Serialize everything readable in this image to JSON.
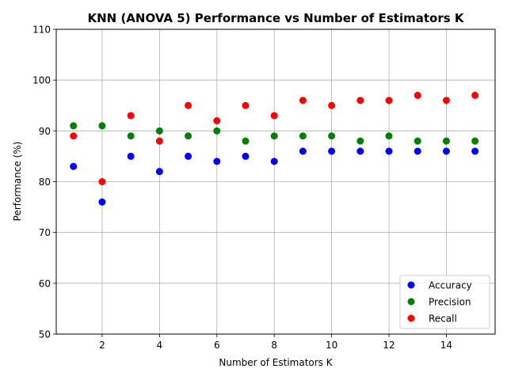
{
  "chart_data": {
    "type": "scatter",
    "title": "KNN (ANOVA 5) Performance vs Number of Estimators K",
    "xlabel": "Number of Estimators K",
    "ylabel": "Performance (%)",
    "xlim": [
      0.4,
      15.7
    ],
    "ylim": [
      50,
      110
    ],
    "xticks": [
      2,
      4,
      6,
      8,
      10,
      12,
      14
    ],
    "yticks": [
      50,
      60,
      70,
      80,
      90,
      100,
      110
    ],
    "grid": true,
    "legend_position": "lower-right",
    "x": [
      1,
      2,
      3,
      4,
      5,
      6,
      7,
      8,
      9,
      10,
      11,
      12,
      13,
      14,
      15
    ],
    "series": [
      {
        "name": "Accuracy",
        "color": "#0000ff",
        "values": [
          83,
          76,
          85,
          82,
          85,
          84,
          85,
          84,
          86,
          86,
          86,
          86,
          86,
          86,
          86
        ]
      },
      {
        "name": "Precision",
        "color": "#008000",
        "values": [
          91,
          91,
          89,
          90,
          89,
          90,
          88,
          89,
          89,
          89,
          88,
          89,
          88,
          88,
          88
        ]
      },
      {
        "name": "Recall",
        "color": "#ff0000",
        "values": [
          89,
          80,
          93,
          88,
          95,
          92,
          95,
          93,
          96,
          95,
          96,
          96,
          97,
          96,
          97
        ]
      }
    ]
  }
}
